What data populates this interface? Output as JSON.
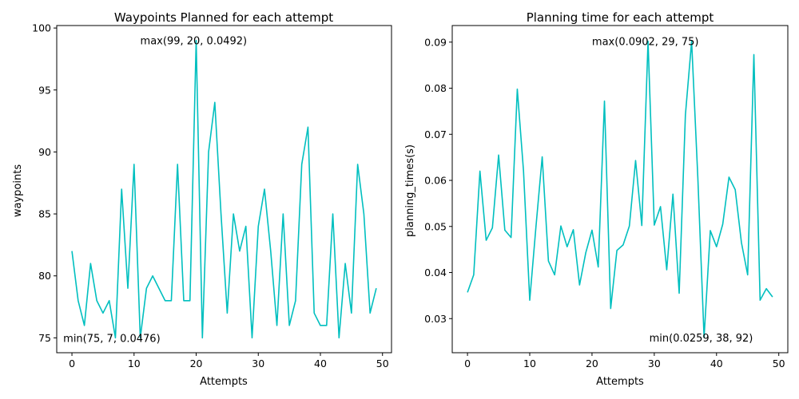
{
  "chart_data": [
    {
      "type": "line",
      "title": "Waypoints Planned for each attempt",
      "xlabel": "Attempts",
      "ylabel": "waypoints",
      "xlim": [
        -2.45,
        51.45
      ],
      "ylim": [
        73.8,
        100.2
      ],
      "xticks": [
        0,
        10,
        20,
        30,
        40,
        50
      ],
      "yticks": [
        75,
        80,
        85,
        90,
        95,
        100
      ],
      "grid": false,
      "line_color": "#00bfbf",
      "series": [
        {
          "x": [
            0,
            1,
            2,
            3,
            4,
            5,
            6,
            7,
            8,
            9,
            10,
            11,
            12,
            13,
            14,
            15,
            16,
            17,
            18,
            19,
            20,
            21,
            22,
            23,
            24,
            25,
            26,
            27,
            28,
            29,
            30,
            31,
            32,
            33,
            34,
            35,
            36,
            37,
            38,
            39,
            40,
            41,
            42,
            43,
            44,
            45,
            46,
            47,
            48,
            49
          ],
          "values": [
            82,
            78,
            76,
            81,
            78,
            77,
            78,
            75,
            87,
            79,
            89,
            75,
            79,
            80,
            79,
            78,
            78,
            89,
            78,
            78,
            99,
            75,
            90,
            94,
            85,
            77,
            85,
            82,
            84,
            75,
            84,
            87,
            82,
            76,
            85,
            76,
            78,
            89,
            92,
            77,
            76,
            76,
            85,
            75,
            81,
            77,
            89,
            85,
            77,
            79
          ]
        }
      ],
      "annotations": [
        {
          "text": "max(99, 20, 0.0492)",
          "x": 11,
          "y": 99
        },
        {
          "text": "min(75, 7, 0.0476)",
          "x": -1.4,
          "y": 75
        }
      ]
    },
    {
      "type": "line",
      "title": "Planning time for each attempt",
      "xlabel": "Attempts",
      "ylabel": "planning_times(s)",
      "xlim": [
        -2.45,
        51.45
      ],
      "ylim": [
        0.0226,
        0.0936
      ],
      "xticks": [
        0,
        10,
        20,
        30,
        40,
        50
      ],
      "yticks": [
        "0.03",
        "0.04",
        "0.05",
        "0.06",
        "0.07",
        "0.08",
        "0.09"
      ],
      "grid": false,
      "line_color": "#00bfbf",
      "series": [
        {
          "x": [
            0,
            1,
            2,
            3,
            4,
            5,
            6,
            7,
            8,
            9,
            10,
            11,
            12,
            13,
            14,
            15,
            16,
            17,
            18,
            19,
            20,
            21,
            22,
            23,
            24,
            25,
            26,
            27,
            28,
            29,
            30,
            31,
            32,
            33,
            34,
            35,
            36,
            37,
            38,
            39,
            40,
            41,
            42,
            43,
            44,
            45,
            46,
            47,
            48,
            49
          ],
          "values": [
            0.0357,
            0.0395,
            0.062,
            0.047,
            0.0497,
            0.0655,
            0.0492,
            0.0476,
            0.0798,
            0.062,
            0.034,
            0.05,
            0.0651,
            0.0425,
            0.0395,
            0.0501,
            0.0456,
            0.0493,
            0.0373,
            0.0443,
            0.0492,
            0.0412,
            0.0772,
            0.0322,
            0.0448,
            0.046,
            0.0501,
            0.0643,
            0.0502,
            0.0902,
            0.0503,
            0.0543,
            0.0406,
            0.057,
            0.0355,
            0.0742,
            0.0902,
            0.0605,
            0.0259,
            0.0491,
            0.0456,
            0.0505,
            0.0607,
            0.058,
            0.0465,
            0.0395,
            0.0873,
            0.034,
            0.0365,
            0.0347
          ]
        }
      ],
      "annotations": [
        {
          "text": "max(0.0902, 29, 75)",
          "x": 20,
          "y": 0.0902
        },
        {
          "text": "min(0.0259, 38, 92)",
          "x": 29.2,
          "y": 0.0259
        }
      ]
    }
  ]
}
